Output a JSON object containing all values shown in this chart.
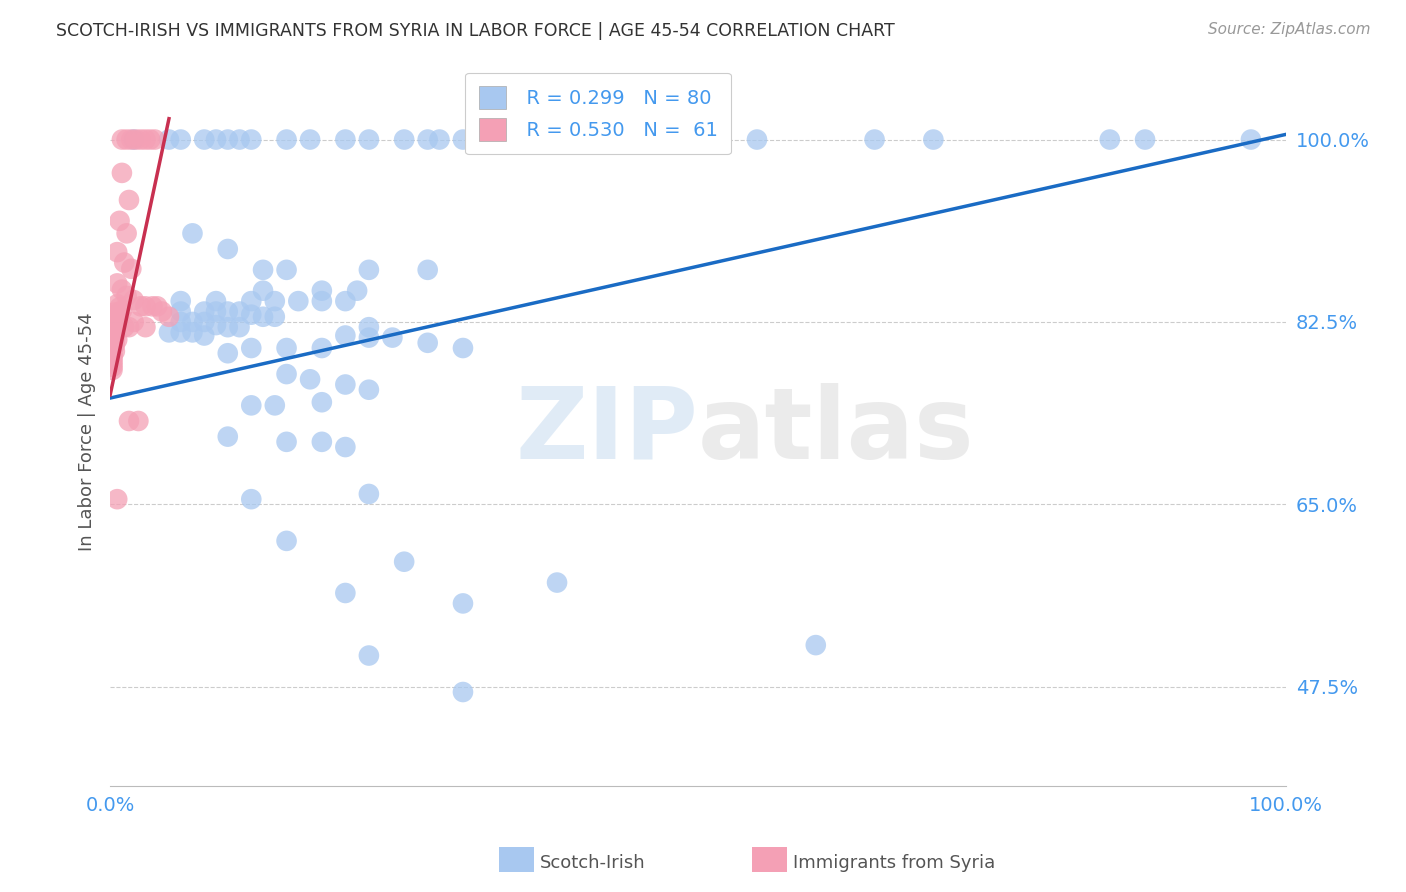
{
  "title": "SCOTCH-IRISH VS IMMIGRANTS FROM SYRIA IN LABOR FORCE | AGE 45-54 CORRELATION CHART",
  "source": "Source: ZipAtlas.com",
  "ylabel": "In Labor Force | Age 45-54",
  "xlim": [
    0.0,
    1.0
  ],
  "ylim": [
    0.38,
    1.06
  ],
  "yticks": [
    0.475,
    0.65,
    0.825,
    1.0
  ],
  "ytick_labels": [
    "47.5%",
    "65.0%",
    "82.5%",
    "100.0%"
  ],
  "xticks": [
    0.0,
    0.1,
    0.2,
    0.3,
    0.4,
    0.5,
    0.6,
    0.7,
    0.8,
    0.9,
    1.0
  ],
  "xtick_labels": [
    "0.0%",
    "",
    "",
    "",
    "",
    "",
    "",
    "",
    "",
    "",
    "100.0%"
  ],
  "blue_color": "#A8C8F0",
  "pink_color": "#F4A0B5",
  "blue_line_color": "#1A6BC4",
  "pink_line_color": "#C83050",
  "legend_label_blue": "Scotch-Irish",
  "legend_label_pink": "Immigrants from Syria",
  "watermark_zip": "ZIP",
  "watermark_atlas": "atlas",
  "background_color": "#FFFFFF",
  "grid_color": "#CCCCCC",
  "title_color": "#333333",
  "axis_color": "#4499EE",
  "blue_scatter": [
    [
      0.02,
      1.0
    ],
    [
      0.05,
      1.0
    ],
    [
      0.06,
      1.0
    ],
    [
      0.08,
      1.0
    ],
    [
      0.09,
      1.0
    ],
    [
      0.1,
      1.0
    ],
    [
      0.11,
      1.0
    ],
    [
      0.12,
      1.0
    ],
    [
      0.15,
      1.0
    ],
    [
      0.17,
      1.0
    ],
    [
      0.2,
      1.0
    ],
    [
      0.22,
      1.0
    ],
    [
      0.25,
      1.0
    ],
    [
      0.27,
      1.0
    ],
    [
      0.28,
      1.0
    ],
    [
      0.3,
      1.0
    ],
    [
      0.55,
      1.0
    ],
    [
      0.65,
      1.0
    ],
    [
      0.7,
      1.0
    ],
    [
      0.85,
      1.0
    ],
    [
      0.88,
      1.0
    ],
    [
      0.97,
      1.0
    ],
    [
      0.07,
      0.91
    ],
    [
      0.1,
      0.895
    ],
    [
      0.13,
      0.875
    ],
    [
      0.15,
      0.875
    ],
    [
      0.22,
      0.875
    ],
    [
      0.27,
      0.875
    ],
    [
      0.13,
      0.855
    ],
    [
      0.18,
      0.855
    ],
    [
      0.21,
      0.855
    ],
    [
      0.06,
      0.845
    ],
    [
      0.09,
      0.845
    ],
    [
      0.12,
      0.845
    ],
    [
      0.14,
      0.845
    ],
    [
      0.16,
      0.845
    ],
    [
      0.18,
      0.845
    ],
    [
      0.2,
      0.845
    ],
    [
      0.06,
      0.835
    ],
    [
      0.08,
      0.835
    ],
    [
      0.09,
      0.835
    ],
    [
      0.1,
      0.835
    ],
    [
      0.11,
      0.835
    ],
    [
      0.12,
      0.832
    ],
    [
      0.13,
      0.83
    ],
    [
      0.14,
      0.83
    ],
    [
      0.06,
      0.825
    ],
    [
      0.07,
      0.825
    ],
    [
      0.08,
      0.825
    ],
    [
      0.09,
      0.822
    ],
    [
      0.1,
      0.82
    ],
    [
      0.11,
      0.82
    ],
    [
      0.22,
      0.82
    ],
    [
      0.05,
      0.815
    ],
    [
      0.06,
      0.815
    ],
    [
      0.07,
      0.815
    ],
    [
      0.08,
      0.812
    ],
    [
      0.2,
      0.812
    ],
    [
      0.22,
      0.81
    ],
    [
      0.24,
      0.81
    ],
    [
      0.27,
      0.805
    ],
    [
      0.12,
      0.8
    ],
    [
      0.15,
      0.8
    ],
    [
      0.18,
      0.8
    ],
    [
      0.1,
      0.795
    ],
    [
      0.3,
      0.8
    ],
    [
      0.15,
      0.775
    ],
    [
      0.17,
      0.77
    ],
    [
      0.2,
      0.765
    ],
    [
      0.22,
      0.76
    ],
    [
      0.12,
      0.745
    ],
    [
      0.14,
      0.745
    ],
    [
      0.18,
      0.748
    ],
    [
      0.1,
      0.715
    ],
    [
      0.15,
      0.71
    ],
    [
      0.18,
      0.71
    ],
    [
      0.2,
      0.705
    ],
    [
      0.12,
      0.655
    ],
    [
      0.22,
      0.66
    ],
    [
      0.15,
      0.615
    ],
    [
      0.25,
      0.595
    ],
    [
      0.2,
      0.565
    ],
    [
      0.3,
      0.555
    ],
    [
      0.22,
      0.505
    ],
    [
      0.3,
      0.47
    ],
    [
      0.38,
      0.575
    ],
    [
      0.6,
      0.515
    ]
  ],
  "pink_scatter": [
    [
      0.01,
      1.0
    ],
    [
      0.014,
      1.0
    ],
    [
      0.018,
      1.0
    ],
    [
      0.022,
      1.0
    ],
    [
      0.026,
      1.0
    ],
    [
      0.03,
      1.0
    ],
    [
      0.034,
      1.0
    ],
    [
      0.038,
      1.0
    ],
    [
      0.01,
      0.968
    ],
    [
      0.016,
      0.942
    ],
    [
      0.008,
      0.922
    ],
    [
      0.014,
      0.91
    ],
    [
      0.006,
      0.892
    ],
    [
      0.012,
      0.882
    ],
    [
      0.018,
      0.876
    ],
    [
      0.006,
      0.862
    ],
    [
      0.01,
      0.856
    ],
    [
      0.014,
      0.85
    ],
    [
      0.02,
      0.846
    ],
    [
      0.006,
      0.842
    ],
    [
      0.008,
      0.839
    ],
    [
      0.01,
      0.836
    ],
    [
      0.004,
      0.834
    ],
    [
      0.006,
      0.832
    ],
    [
      0.002,
      0.83
    ],
    [
      0.004,
      0.828
    ],
    [
      0.006,
      0.826
    ],
    [
      0.002,
      0.824
    ],
    [
      0.004,
      0.822
    ],
    [
      0.002,
      0.82
    ],
    [
      0.004,
      0.817
    ],
    [
      0.002,
      0.815
    ],
    [
      0.002,
      0.812
    ],
    [
      0.004,
      0.81
    ],
    [
      0.006,
      0.808
    ],
    [
      0.002,
      0.806
    ],
    [
      0.004,
      0.803
    ],
    [
      0.002,
      0.8
    ],
    [
      0.004,
      0.797
    ],
    [
      0.002,
      0.794
    ],
    [
      0.002,
      0.791
    ],
    [
      0.002,
      0.788
    ],
    [
      0.002,
      0.785
    ],
    [
      0.002,
      0.782
    ],
    [
      0.002,
      0.779
    ],
    [
      0.026,
      0.84
    ],
    [
      0.03,
      0.84
    ],
    [
      0.036,
      0.84
    ],
    [
      0.04,
      0.84
    ],
    [
      0.044,
      0.835
    ],
    [
      0.05,
      0.83
    ],
    [
      0.02,
      0.825
    ],
    [
      0.03,
      0.82
    ],
    [
      0.016,
      0.82
    ],
    [
      0.012,
      0.82
    ],
    [
      0.016,
      0.73
    ],
    [
      0.024,
      0.73
    ],
    [
      0.006,
      0.655
    ]
  ],
  "blue_trend_x": [
    0.0,
    1.0
  ],
  "blue_trend_y": [
    0.752,
    1.005
  ],
  "pink_trend_x": [
    0.0,
    0.05
  ],
  "pink_trend_y": [
    0.755,
    1.02
  ]
}
